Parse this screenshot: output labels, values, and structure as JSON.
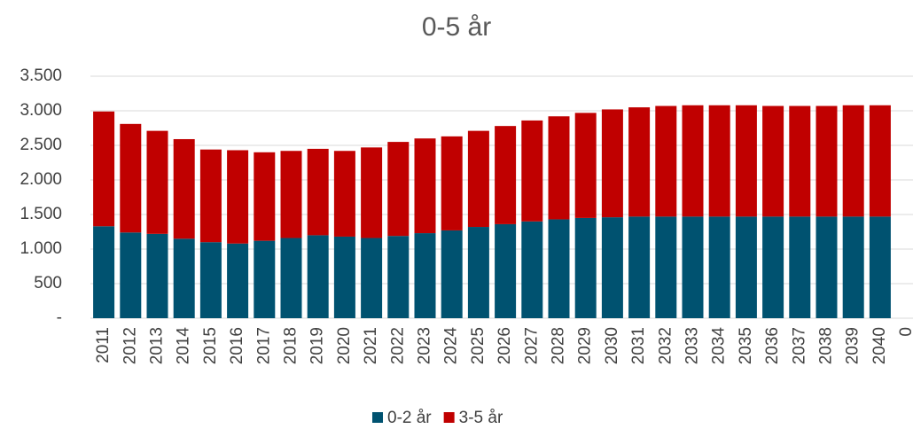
{
  "chart_data": {
    "type": "stacked_bar",
    "title": "0-5 år",
    "categories": [
      "2011",
      "2012",
      "2013",
      "2014",
      "2015",
      "2016",
      "2017",
      "2018",
      "2019",
      "2020",
      "2021",
      "2022",
      "2023",
      "2024",
      "2025",
      "2026",
      "2027",
      "2028",
      "2029",
      "2030",
      "2031",
      "2032",
      "2033",
      "2034",
      "2035",
      "2036",
      "2037",
      "2038",
      "2039",
      "2040",
      "0"
    ],
    "series": [
      {
        "name": "0-2 år",
        "color": "#005270",
        "values": [
          1330,
          1240,
          1220,
          1150,
          1100,
          1080,
          1120,
          1160,
          1200,
          1180,
          1160,
          1190,
          1230,
          1270,
          1320,
          1360,
          1400,
          1430,
          1450,
          1460,
          1470,
          1470,
          1470,
          1470,
          1470,
          1470,
          1470,
          1470,
          1470,
          1470,
          null
        ]
      },
      {
        "name": "3-5 år",
        "color": "#c00000",
        "values": [
          1660,
          1570,
          1490,
          1440,
          1340,
          1350,
          1280,
          1260,
          1250,
          1240,
          1310,
          1360,
          1370,
          1360,
          1390,
          1420,
          1460,
          1490,
          1520,
          1560,
          1580,
          1600,
          1610,
          1610,
          1610,
          1600,
          1600,
          1600,
          1610,
          1610,
          null
        ]
      }
    ],
    "ylim": [
      0,
      3500
    ],
    "yticks": [
      {
        "value": 0,
        "label": "-"
      },
      500,
      {
        "value": 1000,
        "label": "1.000"
      },
      {
        "value": 1500,
        "label": "1.500"
      },
      {
        "value": 2000,
        "label": "2.000"
      },
      {
        "value": 2500,
        "label": "2.500"
      },
      {
        "value": 3000,
        "label": "3.000"
      },
      {
        "value": 3500,
        "label": "3.500"
      }
    ],
    "grid": true,
    "legend": "bottom"
  }
}
